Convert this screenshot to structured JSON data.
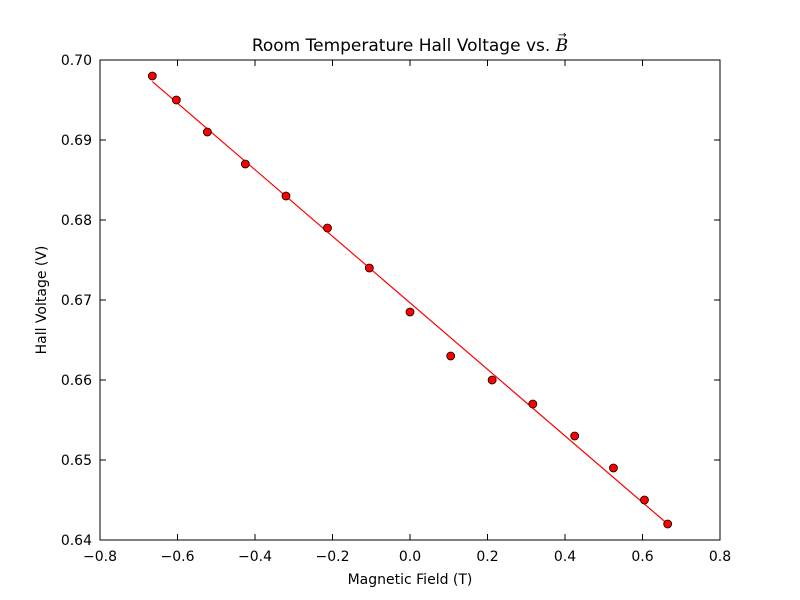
{
  "chart_data": {
    "type": "scatter",
    "title": "Room Temperature Hall Voltage vs. ",
    "title_symbol": "B",
    "xlabel": "Magnetic Field (T)",
    "ylabel": "Hall Voltage (V)",
    "xlim": [
      -0.8,
      0.8
    ],
    "ylim": [
      0.64,
      0.7
    ],
    "xticks": [
      -0.8,
      -0.6,
      -0.4,
      -0.2,
      0.0,
      0.2,
      0.4,
      0.6,
      0.8
    ],
    "xtick_labels": [
      "−0.8",
      "−0.6",
      "−0.4",
      "−0.2",
      "0.0",
      "0.2",
      "0.4",
      "0.6",
      "0.8"
    ],
    "yticks": [
      0.64,
      0.65,
      0.66,
      0.67,
      0.68,
      0.69,
      0.7
    ],
    "ytick_labels": [
      "0.64",
      "0.65",
      "0.66",
      "0.67",
      "0.68",
      "0.69",
      "0.70"
    ],
    "grid": false,
    "series": [
      {
        "kind": "points",
        "color": "#ff0000",
        "x": [
          -0.665,
          -0.603,
          -0.523,
          -0.425,
          -0.32,
          -0.213,
          -0.105,
          0.0,
          0.105,
          0.212,
          0.317,
          0.425,
          0.525,
          0.605,
          0.665
        ],
        "y": [
          0.698,
          0.695,
          0.691,
          0.687,
          0.683,
          0.679,
          0.674,
          0.6685,
          0.663,
          0.66,
          0.657,
          0.653,
          0.649,
          0.645,
          0.642
        ]
      },
      {
        "kind": "fit-line",
        "color": "#ff0000",
        "x": [
          -0.665,
          0.665
        ],
        "y": [
          0.6973,
          0.642
        ]
      }
    ]
  }
}
